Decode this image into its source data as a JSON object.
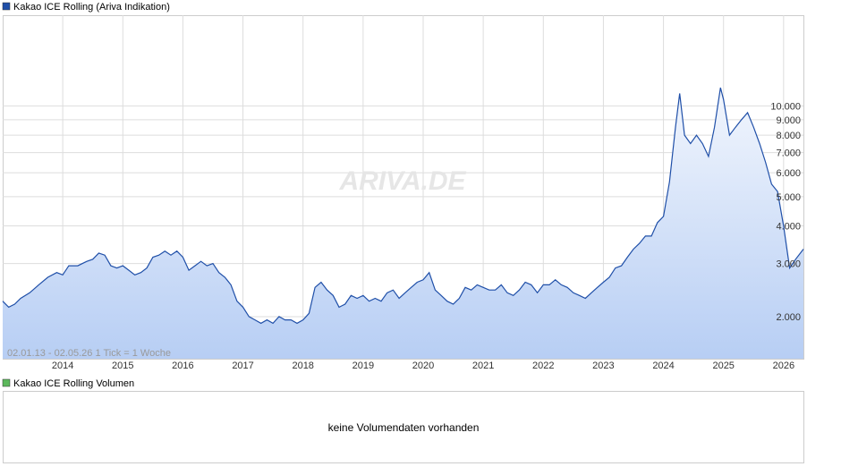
{
  "chart_data": {
    "type": "line",
    "log_scale": true,
    "grid": true,
    "watermark": "ARIVA.DE",
    "range_note": "02.01.13 - 02.05.26   1 Tick = 1 Woche",
    "x": [
      2013.0,
      2013.1,
      2013.2,
      2013.3,
      2013.45,
      2013.6,
      2013.75,
      2013.9,
      2014.0,
      2014.1,
      2014.25,
      2014.4,
      2014.5,
      2014.6,
      2014.7,
      2014.8,
      2014.9,
      2015.0,
      2015.1,
      2015.2,
      2015.3,
      2015.4,
      2015.5,
      2015.6,
      2015.7,
      2015.8,
      2015.9,
      2016.0,
      2016.1,
      2016.2,
      2016.3,
      2016.4,
      2016.5,
      2016.6,
      2016.7,
      2016.8,
      2016.9,
      2017.0,
      2017.1,
      2017.2,
      2017.3,
      2017.4,
      2017.5,
      2017.6,
      2017.7,
      2017.8,
      2017.9,
      2018.0,
      2018.1,
      2018.2,
      2018.3,
      2018.4,
      2018.5,
      2018.6,
      2018.7,
      2018.8,
      2018.9,
      2019.0,
      2019.1,
      2019.2,
      2019.3,
      2019.4,
      2019.5,
      2019.6,
      2019.7,
      2019.8,
      2019.9,
      2020.0,
      2020.1,
      2020.2,
      2020.3,
      2020.4,
      2020.5,
      2020.6,
      2020.7,
      2020.8,
      2020.9,
      2021.0,
      2021.1,
      2021.2,
      2021.3,
      2021.4,
      2021.5,
      2021.6,
      2021.7,
      2021.8,
      2021.9,
      2022.0,
      2022.1,
      2022.2,
      2022.3,
      2022.4,
      2022.5,
      2022.6,
      2022.7,
      2022.8,
      2022.9,
      2023.0,
      2023.1,
      2023.2,
      2023.3,
      2023.4,
      2023.5,
      2023.6,
      2023.7,
      2023.8,
      2023.9,
      2024.0,
      2024.1,
      2024.2,
      2024.27,
      2024.35,
      2024.45,
      2024.55,
      2024.65,
      2024.75,
      2024.85,
      2024.95,
      2025.0,
      2025.1,
      2025.2,
      2025.3,
      2025.4,
      2025.5,
      2025.6,
      2025.7,
      2025.8,
      2025.9,
      2026.0,
      2026.1,
      2026.2,
      2026.33
    ],
    "series": [
      {
        "name": "Kakao ICE Rolling (Ariva Indikation)",
        "color": "#1f4fa8",
        "values": [
          2250,
          2150,
          2200,
          2300,
          2400,
          2550,
          2700,
          2800,
          2750,
          2950,
          2950,
          3050,
          3100,
          3250,
          3200,
          2950,
          2900,
          2950,
          2850,
          2750,
          2800,
          2900,
          3150,
          3200,
          3300,
          3200,
          3300,
          3150,
          2850,
          2950,
          3050,
          2950,
          3000,
          2800,
          2700,
          2550,
          2250,
          2150,
          2000,
          1950,
          1900,
          1950,
          1900,
          2000,
          1950,
          1950,
          1900,
          1950,
          2050,
          2500,
          2600,
          2450,
          2350,
          2150,
          2200,
          2350,
          2300,
          2350,
          2250,
          2300,
          2250,
          2400,
          2450,
          2300,
          2400,
          2500,
          2600,
          2650,
          2800,
          2450,
          2350,
          2250,
          2200,
          2300,
          2500,
          2450,
          2550,
          2500,
          2450,
          2450,
          2550,
          2400,
          2350,
          2450,
          2600,
          2550,
          2400,
          2550,
          2550,
          2650,
          2550,
          2500,
          2400,
          2350,
          2300,
          2400,
          2500,
          2600,
          2700,
          2900,
          2950,
          3150,
          3350,
          3500,
          3700,
          3700,
          4100,
          4300,
          5600,
          8500,
          11000,
          8000,
          7500,
          8000,
          7500,
          6800,
          8500,
          11500,
          10500,
          8000,
          8500,
          9000,
          9500,
          8500,
          7500,
          6500,
          5500,
          5200,
          4000,
          2900,
          3100,
          3350
        ]
      }
    ],
    "xlim": [
      2013.0,
      2026.33
    ],
    "xticks": [
      2014,
      2015,
      2016,
      2017,
      2018,
      2019,
      2020,
      2021,
      2022,
      2023,
      2024,
      2025,
      2026
    ],
    "ylim": [
      1450,
      20000
    ],
    "yticks": [
      {
        "value": 2000,
        "label": "2.000"
      },
      {
        "value": 3000,
        "label": "3.000"
      },
      {
        "value": 4000,
        "label": "4.000"
      },
      {
        "value": 5000,
        "label": "5.000"
      },
      {
        "value": 6000,
        "label": "6.000"
      },
      {
        "value": 7000,
        "label": "7.000"
      },
      {
        "value": 8000,
        "label": "8.000"
      },
      {
        "value": 9000,
        "label": "9.000"
      },
      {
        "value": 10000,
        "label": "10.000"
      }
    ]
  },
  "volume_panel": {
    "legend": "Kakao ICE Rolling Volumen",
    "legend_color": "#5cb85c",
    "message": "keine Volumendaten vorhanden"
  }
}
